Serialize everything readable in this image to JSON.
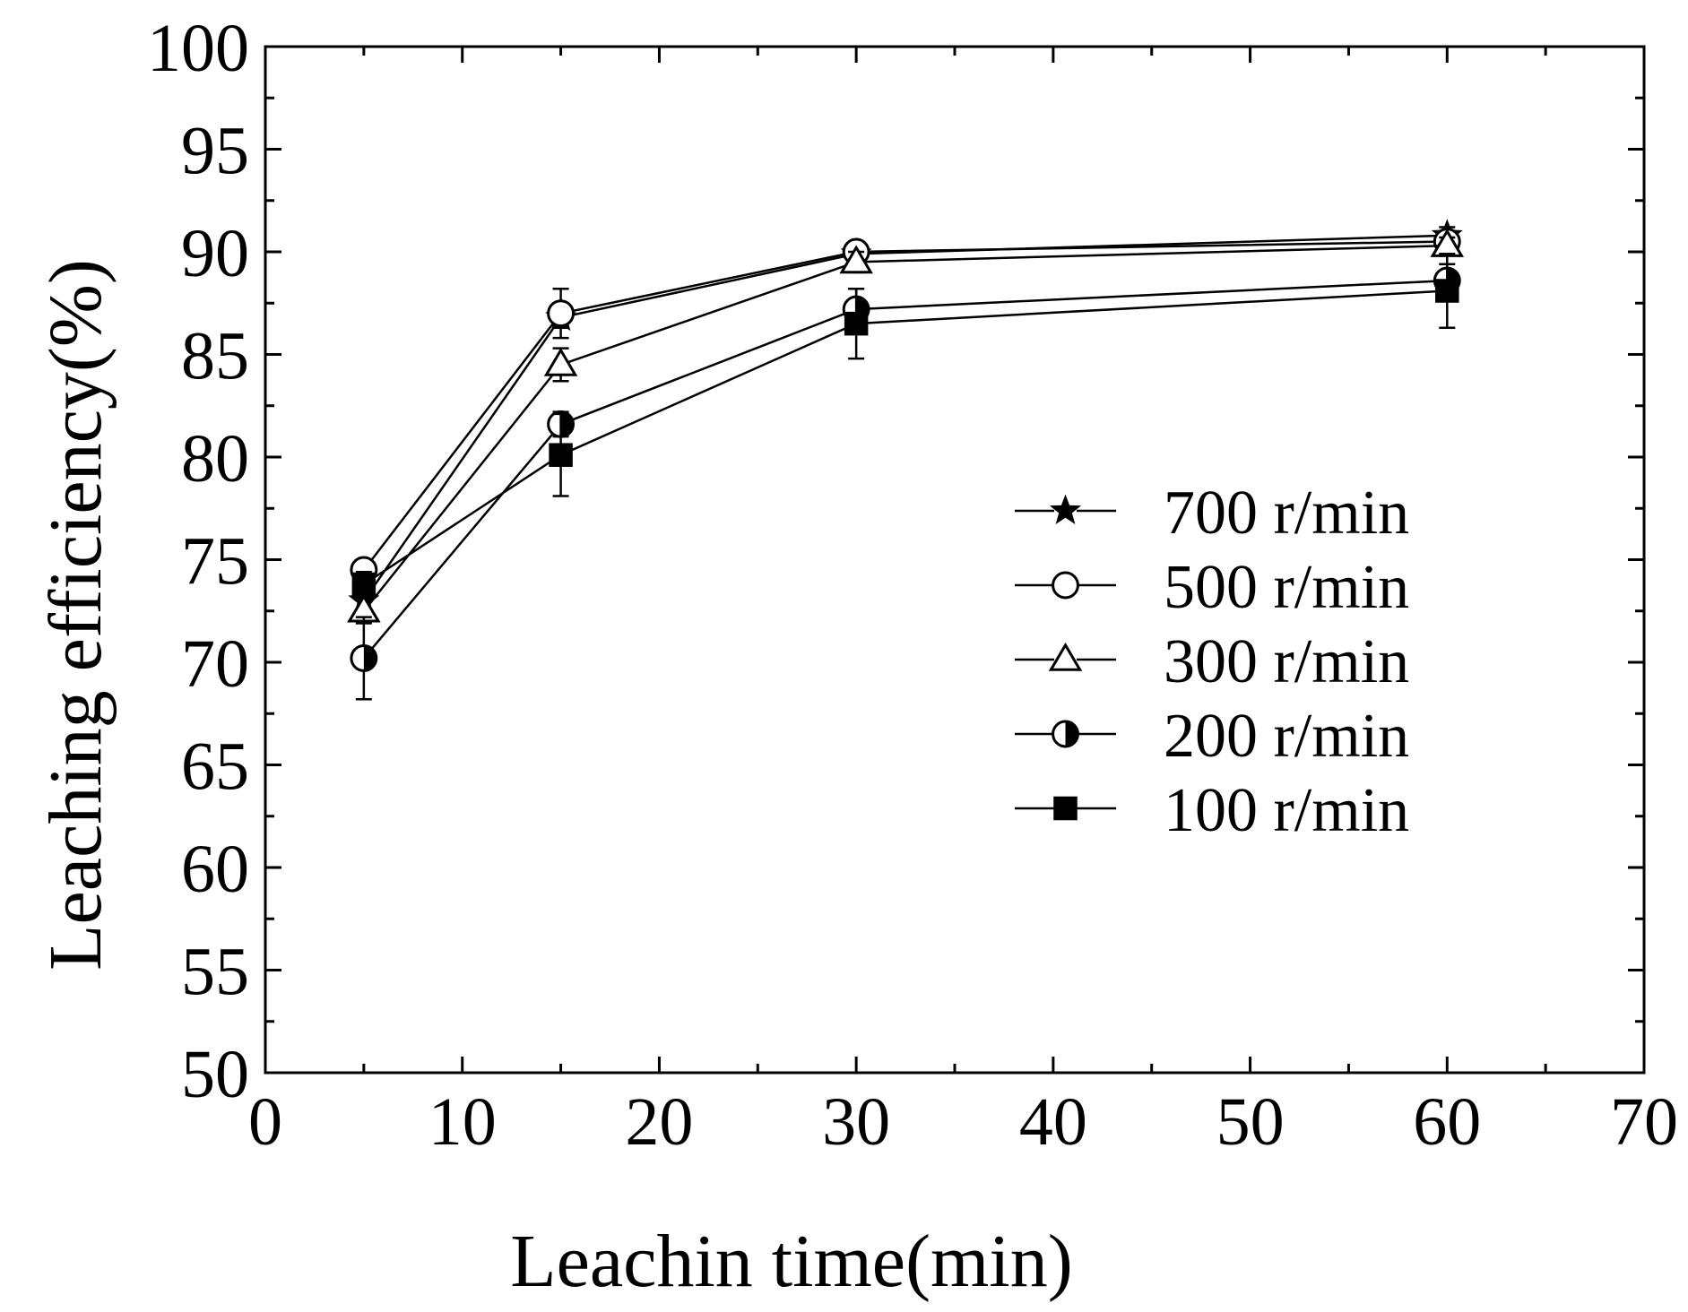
{
  "chart_data": {
    "type": "line",
    "title": "",
    "xlabel": "Leachin time(min)",
    "ylabel": "Leaching efficiency(%)",
    "xlim": [
      0,
      70
    ],
    "ylim": [
      50,
      100
    ],
    "xticks": [
      0,
      10,
      20,
      30,
      40,
      50,
      60,
      70
    ],
    "yticks": [
      50,
      55,
      60,
      65,
      70,
      75,
      80,
      85,
      90,
      95,
      100
    ],
    "grid": false,
    "legend_position": "right-center",
    "x": [
      5,
      15,
      30,
      60
    ],
    "series": [
      {
        "name": "700 r/min",
        "marker": "star",
        "values": [
          73.0,
          86.8,
          89.9,
          90.8
        ],
        "errors": [
          0.6,
          0.5,
          0.3,
          0.4
        ]
      },
      {
        "name": "500 r/min",
        "marker": "open-circle",
        "values": [
          74.5,
          87.0,
          90.0,
          90.5
        ],
        "errors": [
          0.5,
          1.2,
          0.3,
          0.4
        ]
      },
      {
        "name": "300 r/min",
        "marker": "open-triangle",
        "values": [
          72.5,
          84.5,
          89.5,
          90.3
        ],
        "errors": [
          0.6,
          0.8,
          0.5,
          0.4
        ]
      },
      {
        "name": "200 r/min",
        "marker": "half-circle",
        "values": [
          70.2,
          81.6,
          87.2,
          88.6
        ],
        "errors": [
          2.0,
          0.6,
          1.0,
          0.8
        ]
      },
      {
        "name": "100 r/min",
        "marker": "filled-square",
        "values": [
          73.8,
          80.1,
          86.5,
          88.1
        ],
        "errors": [
          0.6,
          2.0,
          1.7,
          1.8
        ]
      }
    ]
  }
}
